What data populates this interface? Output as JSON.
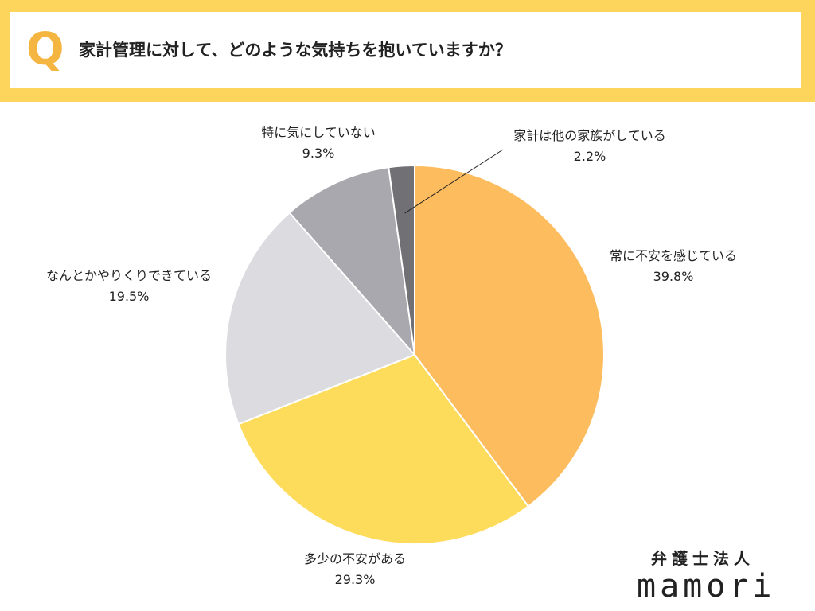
{
  "question": {
    "marker": "Q",
    "text": "家計管理に対して、どのような気持ちを抱いていますか？"
  },
  "chart_data": {
    "type": "pie",
    "slices": [
      {
        "label": "常に不安を感じている",
        "value": 39.8,
        "value_label": "39.8%",
        "color": "#fdbd5e"
      },
      {
        "label": "多少の不安がある",
        "value": 29.3,
        "value_label": "29.3%",
        "color": "#fddc5c"
      },
      {
        "label": "なんとかやりくりできている",
        "value": 19.5,
        "value_label": "19.5%",
        "color": "#dcdbe0"
      },
      {
        "label": "特に気にしていない",
        "value": 9.3,
        "value_label": "9.3%",
        "color": "#a8a8ae"
      },
      {
        "label": "家計は他の家族がしている",
        "value": 2.2,
        "value_label": "2.2%",
        "color": "#707075"
      }
    ]
  },
  "brand": {
    "jp": "弁護士法人",
    "en": "mamori"
  }
}
